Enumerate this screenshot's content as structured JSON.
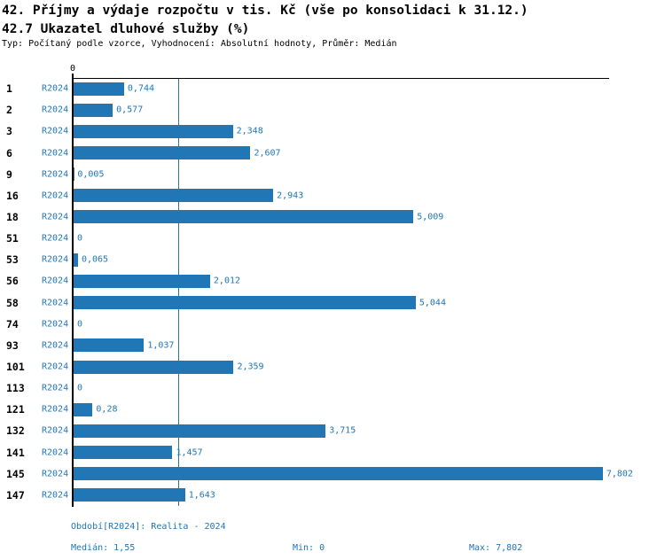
{
  "header": {
    "title_line1": "42. Příjmy a výdaje rozpočtu v tis. Kč (vše po konsolidaci k 31.12.)",
    "title_line2": "42.7 Ukazatel dluhové služby (%)",
    "subtitle": "Typ: Počítaný podle vzorce, Vyhodnocení: Absolutní hodnoty, Průměr: Medián"
  },
  "chart_data": {
    "type": "bar",
    "orientation": "horizontal",
    "title": "42.7 Ukazatel dluhové služby (%)",
    "categories": [
      "1",
      "2",
      "3",
      "6",
      "9",
      "16",
      "18",
      "51",
      "53",
      "56",
      "58",
      "74",
      "93",
      "101",
      "113",
      "121",
      "132",
      "141",
      "145",
      "147"
    ],
    "series": [
      {
        "name": "R2024",
        "values": [
          0.744,
          0.577,
          2.348,
          2.607,
          0.005,
          2.943,
          5.009,
          0,
          0.065,
          2.012,
          5.044,
          0,
          1.037,
          2.359,
          0,
          0.28,
          3.715,
          1.457,
          7.802,
          1.643
        ],
        "value_labels": [
          "0,744",
          "0,577",
          "2,348",
          "2,607",
          "0,005",
          "2,943",
          "5,009",
          "0",
          "0,065",
          "2,012",
          "5,044",
          "0",
          "1,037",
          "2,359",
          "0",
          "0,28",
          "3,715",
          "1,457",
          "7,802",
          "1,643"
        ]
      }
    ],
    "xlim": [
      0,
      7.9
    ],
    "x_axis_zero_label": "0",
    "grid": false,
    "median_value": 1.55,
    "min_value": 0,
    "max_value": 7.802,
    "bar_color": "#2176b5",
    "text_color": "#2176b5"
  },
  "footer": {
    "period": "Období[R2024]: Realita - 2024",
    "median": "Medián: 1,55",
    "min": "Min: 0",
    "max": "Max: 7,802"
  }
}
